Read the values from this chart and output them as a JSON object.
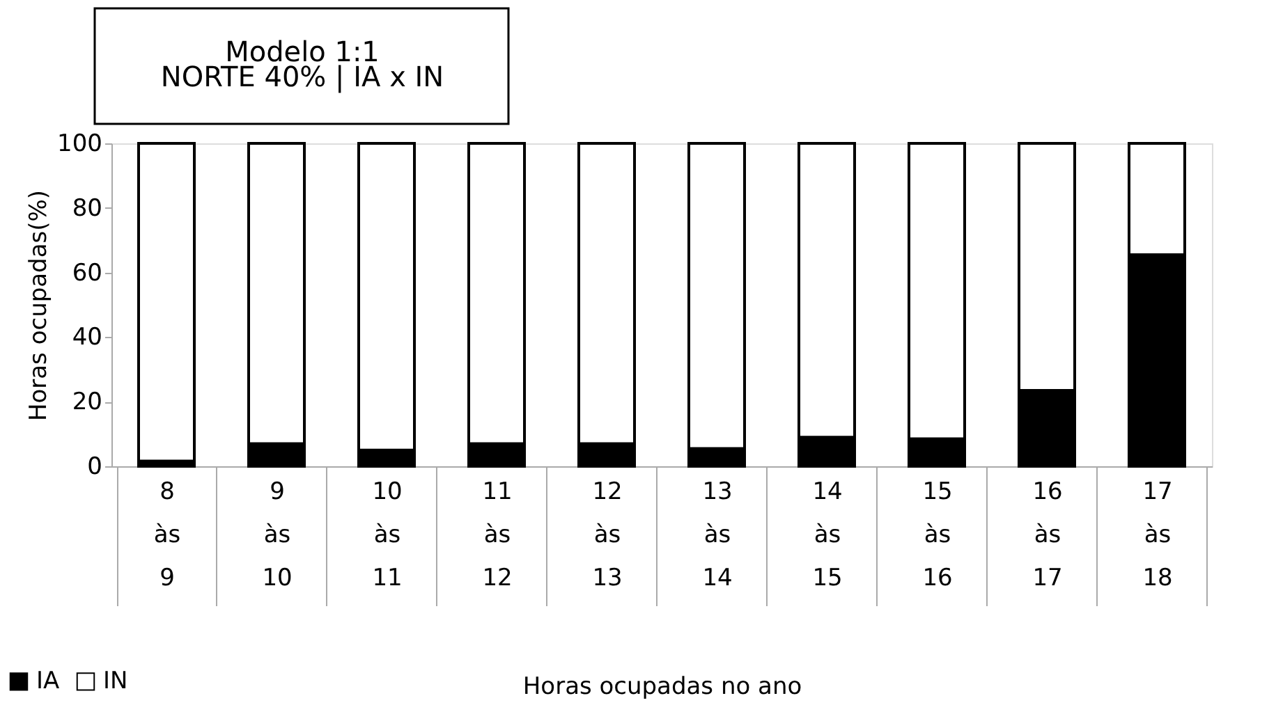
{
  "chart_data": {
    "type": "bar",
    "title": "Modelo 1:1",
    "subtitle": "NORTE 40% | IA x IN",
    "ylabel": "Horas ocupadas(%)",
    "xlabel": "Horas ocupadas no ano",
    "categories": [
      "8 às 9",
      "9 às 10",
      "10 às 11",
      "11 às 12",
      "12 às 13",
      "13 às 14",
      "14 às 15",
      "15 às 16",
      "16 às 17",
      "17 às 18"
    ],
    "stacked": true,
    "series": [
      {
        "name": "IA",
        "color": "#000000",
        "values": [
          1.6,
          7,
          5,
          7,
          7,
          5.5,
          9,
          8.5,
          23.5,
          65.5
        ]
      },
      {
        "name": "IN",
        "color": "#ffffff",
        "values": [
          98.4,
          93,
          95,
          93,
          93,
          94.5,
          91,
          91.5,
          76.5,
          34.5
        ]
      }
    ],
    "ylim": [
      0,
      100
    ],
    "yticks": [
      0,
      20,
      40,
      60,
      80,
      100
    ],
    "grid": false,
    "legend": "bottom left"
  }
}
